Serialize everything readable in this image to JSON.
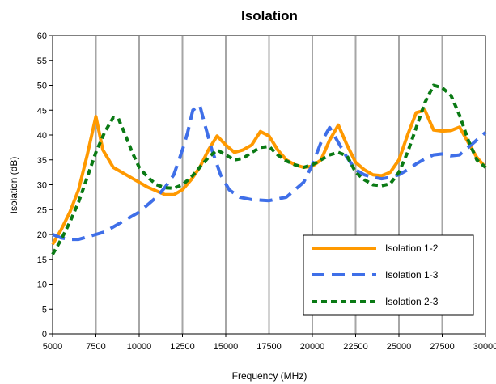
{
  "chart_data": {
    "type": "line",
    "title": "Isolation",
    "xlabel": "Frequency (MHz)",
    "ylabel": "Isolation (dB)",
    "xlim": [
      5000,
      30000
    ],
    "ylim": [
      0,
      60
    ],
    "xticks": [
      5000,
      7500,
      10000,
      12500,
      15000,
      17500,
      20000,
      22500,
      25000,
      27500,
      30000
    ],
    "yticks": [
      0,
      5,
      10,
      15,
      20,
      25,
      30,
      35,
      40,
      45,
      50,
      55,
      60
    ],
    "grid": "vertical",
    "legend_position": "bottom-right",
    "series": [
      {
        "name": "Isolation 1-2",
        "color": "#ff9900",
        "dash": "solid",
        "x": [
          5000,
          5500,
          6000,
          6500,
          7000,
          7500,
          7900,
          8500,
          9500,
          10500,
          11500,
          12000,
          12500,
          13000,
          13500,
          14000,
          14500,
          15000,
          15500,
          16000,
          16500,
          17000,
          17500,
          18000,
          18500,
          19000,
          19500,
          20000,
          20500,
          21000,
          21500,
          22000,
          22500,
          23000,
          23500,
          24000,
          24500,
          25000,
          25500,
          26000,
          26500,
          27000,
          27500,
          28000,
          28500,
          29000,
          29500,
          30000
        ],
        "values": [
          18,
          21,
          24.5,
          29,
          36,
          43.7,
          37,
          33.5,
          31.5,
          29.5,
          28,
          28,
          29,
          31,
          33.5,
          37,
          39.8,
          38,
          36.5,
          37,
          38,
          40.7,
          39.8,
          37,
          35,
          34,
          33.5,
          33.7,
          35,
          39,
          42,
          38,
          34.5,
          33,
          32,
          31.8,
          32.5,
          35,
          40,
          44.5,
          45,
          41,
          40.8,
          40.9,
          41.6,
          38.5,
          35.5,
          33.5
        ]
      },
      {
        "name": "Isolation 1-3",
        "color": "#3f6fe8",
        "dash": "long",
        "x": [
          5000,
          5500,
          6000,
          6500,
          7000,
          7500,
          8000,
          9000,
          10000,
          11000,
          11500,
          12000,
          12500,
          12800,
          13100,
          13500,
          13800,
          14200,
          14700,
          15200,
          15800,
          16500,
          17500,
          18500,
          19500,
          20000,
          20500,
          21000,
          21500,
          22000,
          22500,
          23000,
          23500,
          24000,
          24500,
          25000,
          25500,
          26000,
          26500,
          27000,
          27500,
          28000,
          28500,
          29000,
          29500,
          30000
        ],
        "values": [
          20,
          19.3,
          19,
          19,
          19.5,
          20,
          20.5,
          22.5,
          24.5,
          27.5,
          29.5,
          32,
          37,
          40.5,
          45,
          46,
          42,
          37,
          32,
          29,
          27.5,
          27,
          26.8,
          27.5,
          30.5,
          34,
          38.5,
          41.5,
          38.5,
          35.5,
          33,
          32,
          31.5,
          31.2,
          31.5,
          32,
          33,
          34.2,
          35.2,
          36,
          36.2,
          35.8,
          36,
          37.5,
          39,
          40.5
        ]
      },
      {
        "name": "Isolation 2-3",
        "color": "#0a7a14",
        "dash": "short",
        "x": [
          5000,
          5500,
          6000,
          6500,
          7000,
          7500,
          8000,
          8500,
          8800,
          9200,
          9600,
          10000,
          10500,
          11000,
          11500,
          12000,
          12500,
          13000,
          13500,
          14000,
          14500,
          15000,
          15500,
          16000,
          16500,
          17000,
          17500,
          18000,
          18500,
          19000,
          19500,
          20000,
          20500,
          21000,
          21500,
          22000,
          22500,
          23000,
          23500,
          24000,
          24500,
          25000,
          25500,
          26000,
          26500,
          27000,
          27500,
          28000,
          28500,
          29000,
          29500,
          30000
        ],
        "values": [
          16,
          19,
          22.5,
          26.5,
          31.5,
          36.5,
          40.5,
          43.5,
          43.3,
          40,
          36.5,
          33.5,
          31.5,
          30,
          29.4,
          29.3,
          30,
          31.5,
          33.5,
          35.5,
          37,
          36,
          35,
          35.3,
          36.5,
          37.5,
          37.7,
          36,
          34.8,
          34,
          33.5,
          34,
          35,
          36,
          36.5,
          35.8,
          32.5,
          31,
          30,
          29.8,
          30.2,
          32.5,
          36.5,
          41.5,
          46.5,
          50,
          49.5,
          48,
          44,
          39,
          35,
          33.5
        ]
      }
    ]
  }
}
